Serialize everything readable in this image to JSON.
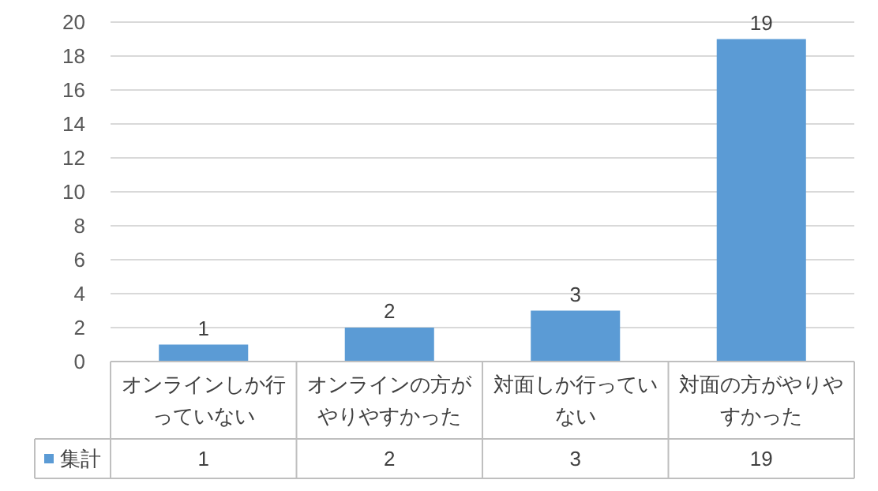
{
  "chart_data": {
    "type": "bar",
    "categories": [
      "オンラインしか行っていない",
      "オンラインの方がやりやすかった",
      "対面しか行っていない",
      "対面の方がやりやすかった"
    ],
    "series": [
      {
        "name": "集計",
        "color": "#5b9bd5",
        "values": [
          1,
          2,
          3,
          19
        ],
        "value_labels": [
          "1",
          "2",
          "3",
          "19"
        ]
      }
    ],
    "ylim": [
      0,
      20
    ],
    "yticks": [
      0,
      2,
      4,
      6,
      8,
      10,
      12,
      14,
      16,
      18,
      20
    ],
    "grid": "y",
    "data_labels": true,
    "annotations": [
      "1",
      "2",
      "3",
      "19"
    ],
    "legend": "bottom left"
  }
}
